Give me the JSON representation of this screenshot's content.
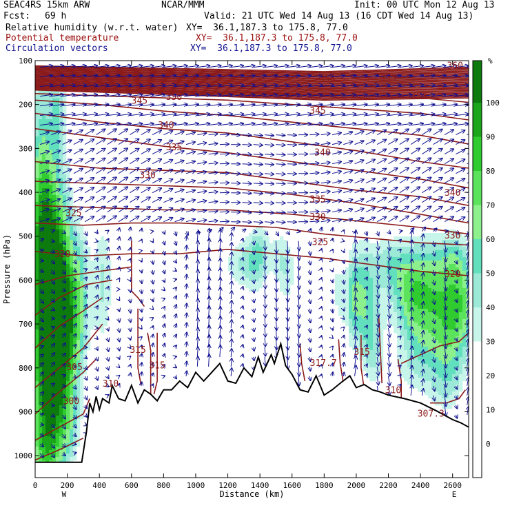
{
  "header": {
    "model": "SEAC4RS 15km ARW",
    "org": "NCAR/MMM",
    "init": "Init: 00 UTC Mon 12 Aug 13",
    "fcst_label": "Fcst:",
    "fcst_value": "69 h",
    "valid": "Valid: 21 UTC Wed 14 Aug 13 (16 CDT Wed 14 Aug 13)",
    "fields": [
      {
        "name": "Relative humidity (w.r.t. water)",
        "xy": "XY=  36.1,187.3 to 175.8, 77.0",
        "color": "#000000"
      },
      {
        "name": "Potential temperature",
        "xy": "XY=  36.1,187.3 to 175.8, 77.0",
        "color": "#9b1010"
      },
      {
        "name": "Circulation vectors",
        "xy": "XY=  36.1,187.3 to 175.8, 77.0",
        "color": "#101090"
      }
    ]
  },
  "chart_data": {
    "type": "heatmap",
    "xlabel": "Distance (km)",
    "ylabel": "Pressure (hPa)",
    "xlim": [
      0,
      2700
    ],
    "ylim": [
      1050,
      100
    ],
    "x_ticks": [
      "0",
      "200",
      "400",
      "600",
      "800",
      "1000",
      "1200",
      "1400",
      "1600",
      "1800",
      "2000",
      "2200",
      "2400",
      "2600"
    ],
    "y_ticks": [
      "100",
      "200",
      "300",
      "400",
      "500",
      "600",
      "700",
      "800",
      "900",
      "1000"
    ],
    "x_end_labels": {
      "left": "W",
      "right": "E"
    },
    "colorbar": {
      "unit": "%",
      "ticks": [
        "0",
        "10",
        "20",
        "30",
        "40",
        "50",
        "60",
        "70",
        "80",
        "90",
        "100"
      ],
      "levels": [
        {
          "min": 30,
          "max": 40,
          "color": "#c8f5ea"
        },
        {
          "min": 40,
          "max": 50,
          "color": "#9be9d6"
        },
        {
          "min": 50,
          "max": 60,
          "color": "#62e0be"
        },
        {
          "min": 60,
          "max": 70,
          "color": "#8cf08c"
        },
        {
          "min": 70,
          "max": 80,
          "color": "#5ce35c"
        },
        {
          "min": 80,
          "max": 90,
          "color": "#2fcb2f"
        },
        {
          "min": 90,
          "max": 100,
          "color": "#1aa51a"
        },
        {
          "min": 100,
          "max": 110,
          "color": "#0d7a0d"
        }
      ]
    },
    "theta_labels": [
      {
        "text": "360",
        "x": 2615,
        "p": 110
      },
      {
        "text": "355",
        "x": 1820,
        "p": 140
      },
      {
        "text": "355",
        "x": 2200,
        "p": 138
      },
      {
        "text": "345",
        "x": 650,
        "p": 190
      },
      {
        "text": "350",
        "x": 865,
        "p": 182
      },
      {
        "text": "350",
        "x": 2390,
        "p": 180
      },
      {
        "text": "345",
        "x": 1760,
        "p": 213
      },
      {
        "text": "340",
        "x": 815,
        "p": 246
      },
      {
        "text": "335",
        "x": 865,
        "p": 296
      },
      {
        "text": "340",
        "x": 1790,
        "p": 308
      },
      {
        "text": "330",
        "x": 700,
        "p": 360
      },
      {
        "text": "335",
        "x": 1760,
        "p": 415
      },
      {
        "text": "340",
        "x": 2600,
        "p": 400
      },
      {
        "text": "325",
        "x": 240,
        "p": 446
      },
      {
        "text": "330",
        "x": 1760,
        "p": 455
      },
      {
        "text": "325",
        "x": 1775,
        "p": 512
      },
      {
        "text": "330",
        "x": 2600,
        "p": 497
      },
      {
        "text": "320",
        "x": 170,
        "p": 540
      },
      {
        "text": "320",
        "x": 2600,
        "p": 585
      },
      {
        "text": "315",
        "x": 640,
        "p": 758
      },
      {
        "text": "315",
        "x": 760,
        "p": 793
      },
      {
        "text": "317.7",
        "x": 1795,
        "p": 788
      },
      {
        "text": "315",
        "x": 2035,
        "p": 763
      },
      {
        "text": "305",
        "x": 245,
        "p": 797
      },
      {
        "text": "310",
        "x": 470,
        "p": 835
      },
      {
        "text": "310",
        "x": 2230,
        "p": 850
      },
      {
        "text": "300",
        "x": 225,
        "p": 875
      },
      {
        "text": "307.3",
        "x": 2465,
        "p": 903
      }
    ],
    "terrain": [
      [
        0,
        1015
      ],
      [
        290,
        1015
      ],
      [
        320,
        945
      ],
      [
        340,
        880
      ],
      [
        360,
        900
      ],
      [
        380,
        865
      ],
      [
        400,
        895
      ],
      [
        420,
        870
      ],
      [
        460,
        880
      ],
      [
        480,
        840
      ],
      [
        520,
        870
      ],
      [
        560,
        875
      ],
      [
        600,
        840
      ],
      [
        640,
        880
      ],
      [
        680,
        850
      ],
      [
        720,
        860
      ],
      [
        760,
        875
      ],
      [
        800,
        850
      ],
      [
        850,
        850
      ],
      [
        900,
        830
      ],
      [
        950,
        845
      ],
      [
        1000,
        810
      ],
      [
        1050,
        830
      ],
      [
        1100,
        810
      ],
      [
        1150,
        790
      ],
      [
        1200,
        830
      ],
      [
        1250,
        835
      ],
      [
        1300,
        800
      ],
      [
        1350,
        820
      ],
      [
        1390,
        775
      ],
      [
        1420,
        810
      ],
      [
        1470,
        770
      ],
      [
        1490,
        790
      ],
      [
        1530,
        745
      ],
      [
        1560,
        795
      ],
      [
        1600,
        815
      ],
      [
        1650,
        850
      ],
      [
        1700,
        855
      ],
      [
        1750,
        818
      ],
      [
        1800,
        862
      ],
      [
        1850,
        850
      ],
      [
        1900,
        835
      ],
      [
        1960,
        818
      ],
      [
        2000,
        845
      ],
      [
        2050,
        838
      ],
      [
        2100,
        850
      ],
      [
        2150,
        855
      ],
      [
        2200,
        862
      ],
      [
        2300,
        870
      ],
      [
        2400,
        880
      ],
      [
        2500,
        898
      ],
      [
        2600,
        918
      ],
      [
        2650,
        925
      ],
      [
        2700,
        935
      ]
    ]
  }
}
